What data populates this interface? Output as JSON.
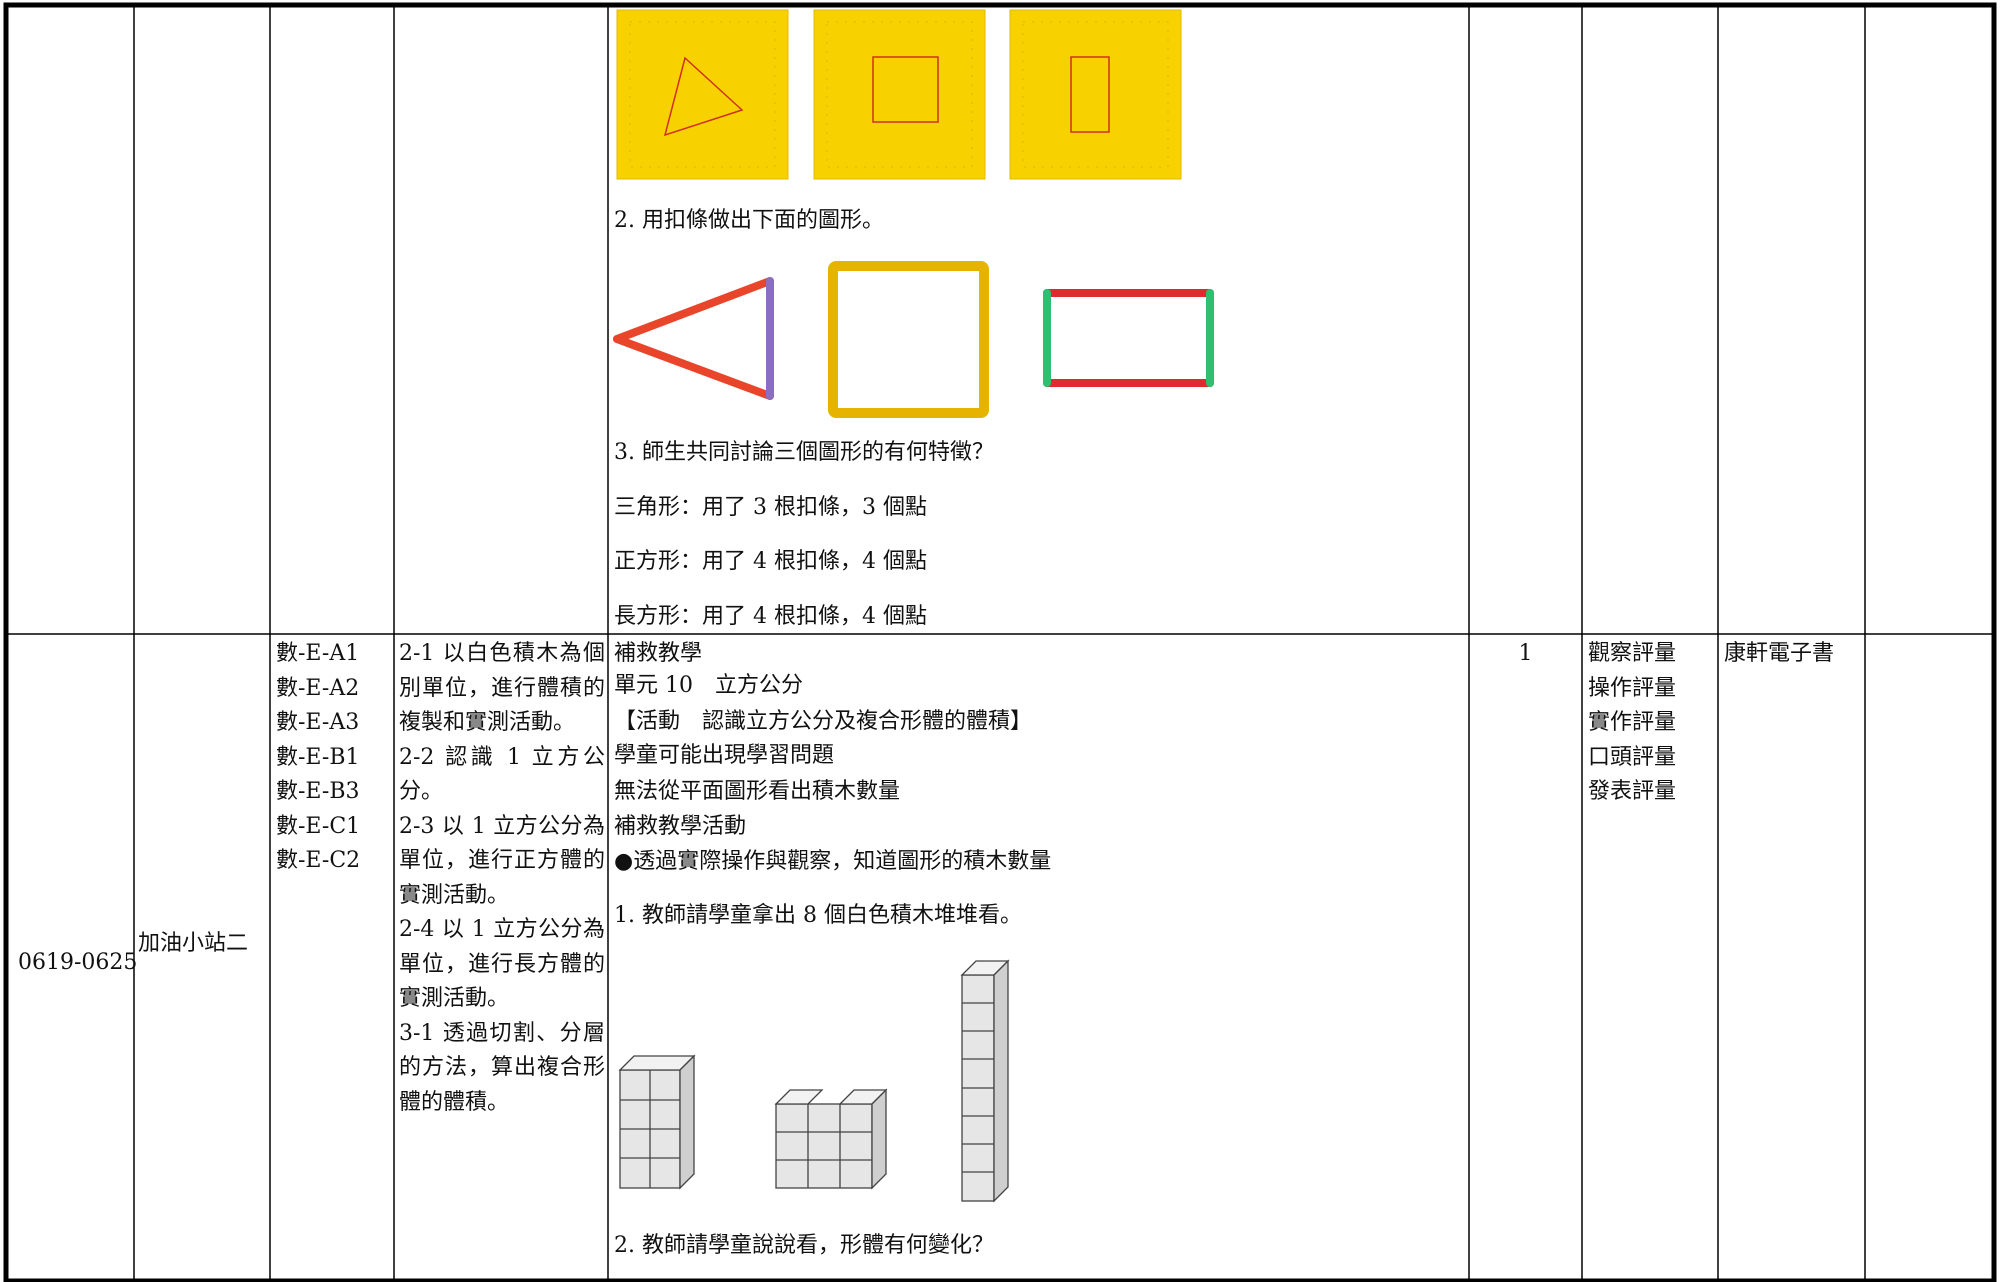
{
  "table": {
    "rows": [
      {
        "lesson_lines": [
          "2. 用扣條做出下面的圖形。",
          "3. 師生共同討論三個圖形的有何特徵？",
          "三角形：用了 3 根扣條，3 個點",
          "正方形：用了 4 根扣條，4 個點",
          "長方形：用了 4 根扣條，4 個點"
        ]
      },
      {
        "week": "0619-0625",
        "unit": "加油小站二",
        "competencies": [
          "數-E-A1",
          "數-E-A2",
          "數-E-A3",
          "數-E-B1",
          "數-E-B3",
          "數-E-C1",
          "數-E-C2"
        ],
        "objectives": [
          "2-1 以白色積木為個別單位，進行體積的複製和實測活動。",
          "2-2 認識 1 立方公分。",
          "2-3 以 1 立方公分為單位，進行正方體的實測活動。",
          "2-4 以 1 立方公分為單位，進行長方體的實測活動。",
          "3-1 透過切割、分層的方法，算出複合形體的體積。"
        ],
        "lesson_lines": [
          "補救教學",
          "單元 10　立方公分",
          "【活動　認識立方公分及複合形體的體積】",
          "學童可能出現學習問題",
          "無法從平面圖形看出積木數量",
          "補救教學活動",
          "●透過實際操作與觀察，知道圖形的積木數量",
          "1. 教師請學童拿出 8 個白色積木堆堆看。",
          "2. 教師請學童說說看，形體有何變化？"
        ],
        "hours": 1,
        "assessment": [
          "觀察評量",
          "操作評量",
          "實作評量",
          "口頭評量",
          "發表評量"
        ],
        "resources": "康軒電子書"
      }
    ]
  }
}
